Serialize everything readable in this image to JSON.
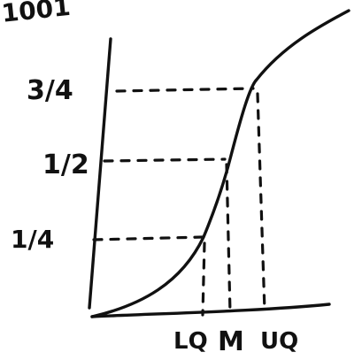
{
  "chart_data": {
    "type": "line",
    "title": "",
    "title_fragment": "1001",
    "xlabel": "",
    "ylabel": "",
    "y_tick_labels": [
      "3/4",
      "1/2",
      "1/4"
    ],
    "y_tick_values": [
      0.75,
      0.5,
      0.25
    ],
    "x_tick_labels": [
      "LQ",
      "M",
      "UQ"
    ],
    "series": [
      {
        "shape": "cumulative-frequency-ogive",
        "x": [
          0,
          0.4,
          0.8,
          1.2,
          1.6,
          2.0
        ],
        "y": [
          0,
          0.05,
          0.25,
          0.5,
          0.75,
          0.95
        ]
      }
    ],
    "guides": "dashed lines from each y tick to the curve and down to the x axis",
    "grid": false,
    "legend": "none",
    "colors": {
      "ink": "#111111",
      "background": "#ffffff"
    }
  }
}
